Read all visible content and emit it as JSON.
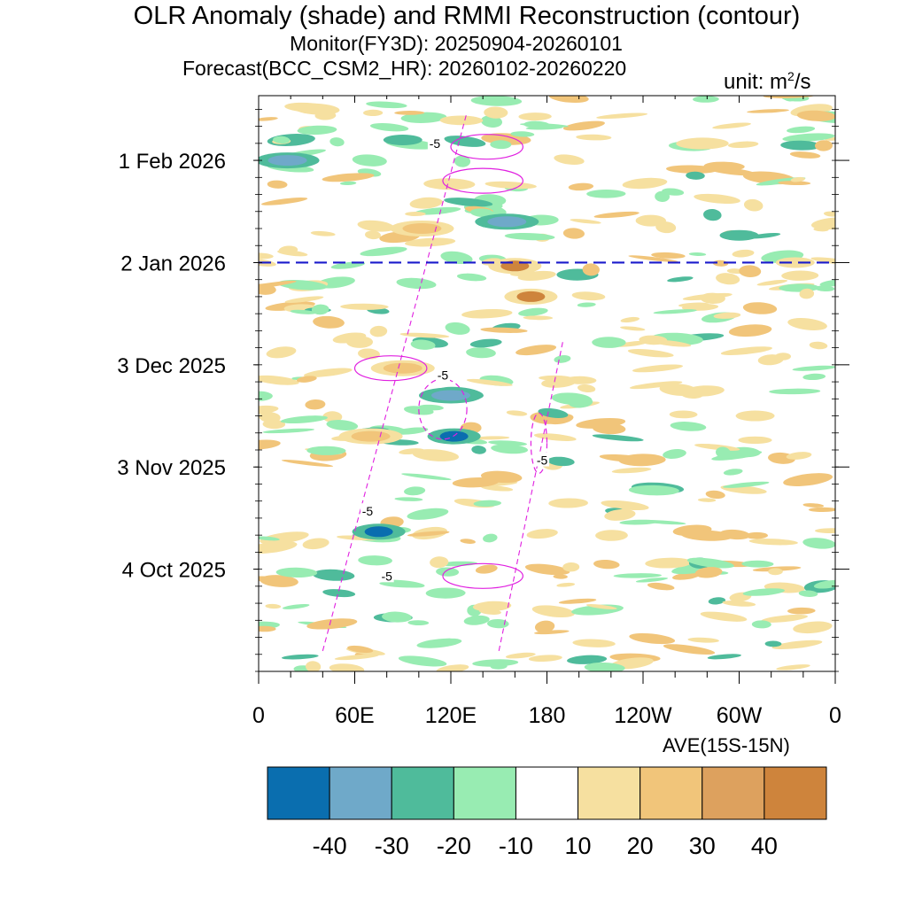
{
  "chart_data": {
    "type": "heatmap",
    "title": "OLR Anomaly (shade) and RMMI Reconstruction (contour)",
    "subtitle_monitor": "Monitor(FY3D): 20250904-20260101",
    "subtitle_forecast": "Forecast(BCC_CSM2_HR): 20260102-20260220",
    "unit_label": "unit: m",
    "unit_exponent": "2",
    "unit_suffix": "/s",
    "average_note": "AVE(15S-15N)",
    "x_axis": {
      "ticks": [
        "0",
        "60E",
        "120E",
        "180",
        "120W",
        "60W",
        "0"
      ],
      "range_degrees_east": [
        0,
        360
      ]
    },
    "y_axis": {
      "ticks": [
        "4 Oct 2025",
        "3 Nov 2025",
        "3 Dec 2025",
        "2 Jan 2026",
        "1 Feb 2026"
      ],
      "range": [
        "2025-09-04",
        "2026-02-20"
      ]
    },
    "forecast_start_line": {
      "date": "2026-01-02",
      "color": "#1a1acc",
      "style": "dashed"
    },
    "contour_color": "#e020e0",
    "contour_labels": [
      "-5",
      "-5",
      "-5",
      "-5",
      "-5"
    ],
    "colorbar": {
      "labels": [
        "-40",
        "-30",
        "-20",
        "-10",
        "10",
        "20",
        "30",
        "40"
      ],
      "colors": [
        "#0a6eaf",
        "#6fa9c9",
        "#4fbb9b",
        "#98ecb2",
        "#ffffff",
        "#f6e0a0",
        "#f1c57a",
        "#dda15e",
        "#ce843c"
      ]
    },
    "anomaly_features": [
      {
        "kind": "negative",
        "level": -40,
        "lon": 75,
        "date": "2025-10-15"
      },
      {
        "kind": "negative",
        "level": -40,
        "lon": 122,
        "date": "2025-11-12"
      },
      {
        "kind": "negative",
        "level": -30,
        "lon": 120,
        "date": "2025-11-24"
      },
      {
        "kind": "negative",
        "level": -30,
        "lon": 155,
        "date": "2026-01-14"
      },
      {
        "kind": "negative",
        "level": -30,
        "lon": 18,
        "date": "2026-02-01"
      },
      {
        "kind": "negative",
        "level": -20,
        "lon": 90,
        "date": "2026-02-07"
      },
      {
        "kind": "negative",
        "level": -20,
        "lon": 300,
        "date": "2026-01-10"
      },
      {
        "kind": "positive",
        "level": 40,
        "lon": 160,
        "date": "2026-01-01"
      },
      {
        "kind": "positive",
        "level": 40,
        "lon": 170,
        "date": "2025-12-23"
      },
      {
        "kind": "positive",
        "level": 30,
        "lon": 102,
        "date": "2026-01-12"
      },
      {
        "kind": "positive",
        "level": 30,
        "lon": 90,
        "date": "2025-12-02"
      },
      {
        "kind": "positive",
        "level": 30,
        "lon": 70,
        "date": "2025-11-12"
      },
      {
        "kind": "positive",
        "level": 20,
        "lon": 335,
        "date": "2026-01-02"
      },
      {
        "kind": "positive",
        "level": 20,
        "lon": 310,
        "date": "2025-11-18"
      }
    ],
    "contour_lines": [
      {
        "value": 5,
        "style": "solid",
        "lon_range": [
          120,
          165
        ],
        "date": "2026-02-05"
      },
      {
        "value": 5,
        "style": "solid",
        "lon_range": [
          115,
          165
        ],
        "date": "2026-01-26"
      },
      {
        "value": 5,
        "style": "solid",
        "lon_range": [
          60,
          105
        ],
        "date": "2025-12-02"
      },
      {
        "value": 5,
        "style": "solid",
        "lon_range": [
          115,
          165
        ],
        "date": "2025-10-02"
      },
      {
        "value": -5,
        "style": "dashed",
        "lon_range": [
          100,
          130
        ],
        "date": "2025-11-20"
      },
      {
        "value": -5,
        "style": "dashed",
        "lon_range": [
          170,
          180
        ],
        "date": "2025-11-10"
      }
    ]
  }
}
